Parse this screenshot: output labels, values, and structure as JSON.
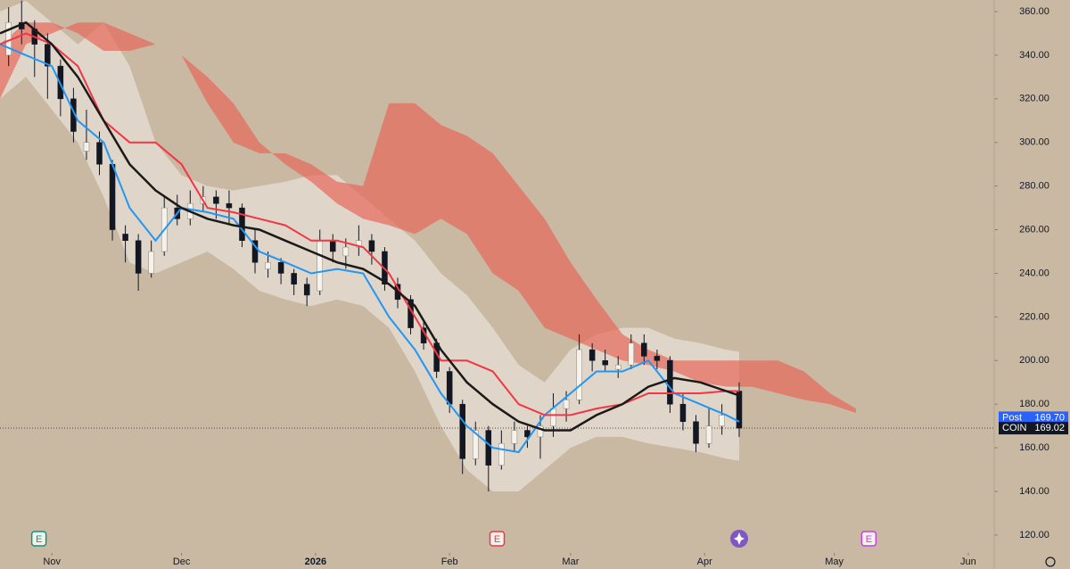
{
  "chart_data": {
    "type": "candlestick",
    "symbol": "COIN",
    "xlim": [
      -12,
      218
    ],
    "xticks": [
      {
        "value": 0,
        "label": "Nov"
      },
      {
        "value": 30,
        "label": "Dec"
      },
      {
        "value": 61,
        "label": "2026"
      },
      {
        "value": 92,
        "label": "Feb"
      },
      {
        "value": 120,
        "label": "Mar"
      },
      {
        "value": 151,
        "label": "Apr"
      },
      {
        "value": 181,
        "label": "May"
      },
      {
        "value": 212,
        "label": "Jun"
      }
    ],
    "ylim": [
      111.8,
      365.3
    ],
    "yticks": [
      {
        "value": 120,
        "label": "120.00"
      },
      {
        "value": 140,
        "label": "140.00"
      },
      {
        "value": 160,
        "label": "160.00"
      },
      {
        "value": 180,
        "label": "180.00"
      },
      {
        "value": 200,
        "label": "200.00"
      },
      {
        "value": 220,
        "label": "220.00"
      },
      {
        "value": 240,
        "label": "240.00"
      },
      {
        "value": 260,
        "label": "260.00"
      },
      {
        "value": 280,
        "label": "280.00"
      },
      {
        "value": 300,
        "label": "300.00"
      },
      {
        "value": 320,
        "label": "320.00"
      },
      {
        "value": 340,
        "label": "340.00"
      },
      {
        "value": 360,
        "label": "360.00"
      }
    ],
    "candles": [
      [
        -10,
        340,
        362,
        335,
        355
      ],
      [
        -7,
        355,
        365,
        345,
        352
      ],
      [
        -4,
        352,
        356,
        330,
        345
      ],
      [
        -1,
        345,
        350,
        320,
        335
      ],
      [
        2,
        335,
        338,
        312,
        320
      ],
      [
        5,
        320,
        325,
        300,
        305
      ],
      [
        8,
        296,
        315,
        292,
        300
      ],
      [
        11,
        300,
        305,
        285,
        290
      ],
      [
        14,
        290,
        292,
        255,
        260
      ],
      [
        17,
        258,
        262,
        245,
        255
      ],
      [
        20,
        255,
        258,
        232,
        240
      ],
      [
        23,
        240,
        255,
        238,
        250
      ],
      [
        26,
        250,
        275,
        248,
        270
      ],
      [
        29,
        270,
        276,
        262,
        265
      ],
      [
        32,
        265,
        278,
        262,
        272
      ],
      [
        35,
        272,
        280,
        268,
        275
      ],
      [
        38,
        275,
        278,
        265,
        272
      ],
      [
        41,
        272,
        278,
        262,
        270
      ],
      [
        44,
        270,
        272,
        252,
        255
      ],
      [
        47,
        255,
        260,
        240,
        245
      ],
      [
        50,
        242,
        250,
        238,
        245
      ],
      [
        53,
        245,
        247,
        235,
        240
      ],
      [
        56,
        240,
        242,
        230,
        235
      ],
      [
        59,
        235,
        238,
        225,
        230
      ],
      [
        62,
        232,
        260,
        230,
        255
      ],
      [
        65,
        255,
        258,
        245,
        250
      ],
      [
        68,
        248,
        256,
        242,
        252
      ],
      [
        71,
        252,
        262,
        248,
        255
      ],
      [
        74,
        255,
        258,
        244,
        250
      ],
      [
        77,
        250,
        252,
        232,
        235
      ],
      [
        80,
        235,
        238,
        224,
        228
      ],
      [
        83,
        228,
        230,
        212,
        215
      ],
      [
        86,
        215,
        218,
        205,
        208
      ],
      [
        89,
        208,
        210,
        192,
        195
      ],
      [
        92,
        195,
        197,
        176,
        180
      ],
      [
        95,
        180,
        182,
        148,
        155
      ],
      [
        98,
        155,
        172,
        152,
        168
      ],
      [
        101,
        168,
        170,
        140,
        152
      ],
      [
        104,
        152,
        168,
        150,
        162
      ],
      [
        107,
        162,
        172,
        158,
        168
      ],
      [
        110,
        168,
        170,
        160,
        165
      ],
      [
        113,
        165,
        175,
        155,
        170
      ],
      [
        116,
        170,
        185,
        165,
        178
      ],
      [
        119,
        178,
        186,
        172,
        182
      ],
      [
        122,
        182,
        212,
        180,
        205
      ],
      [
        125,
        205,
        208,
        195,
        200
      ],
      [
        128,
        200,
        205,
        195,
        198
      ],
      [
        131,
        196,
        202,
        192,
        198
      ],
      [
        134,
        198,
        212,
        196,
        208
      ],
      [
        137,
        208,
        212,
        198,
        202
      ],
      [
        140,
        202,
        205,
        196,
        200
      ],
      [
        143,
        200,
        202,
        176,
        180
      ],
      [
        146,
        180,
        185,
        168,
        172
      ],
      [
        149,
        172,
        175,
        158,
        162
      ],
      [
        152,
        162,
        178,
        160,
        170
      ],
      [
        155,
        170,
        180,
        166,
        175
      ],
      [
        159,
        186,
        190,
        165,
        169.02
      ]
    ],
    "up_color": "#f5f2ec",
    "down_color": "#131722",
    "line_x": [
      -12,
      -6,
      0,
      6,
      12,
      18,
      24,
      30,
      36,
      42,
      48,
      54,
      60,
      66,
      72,
      78,
      84,
      90,
      96,
      102,
      108,
      114,
      120,
      126,
      132,
      138,
      144,
      150,
      156,
      159
    ],
    "band": {
      "color": "#e6dfd4",
      "upper": [
        360,
        365,
        355,
        345,
        355,
        335,
        300,
        285,
        280,
        278,
        280,
        282,
        285,
        285,
        275,
        265,
        255,
        240,
        230,
        215,
        198,
        190,
        205,
        212,
        215,
        215,
        210,
        208,
        205,
        204
      ],
      "lower": [
        320,
        330,
        315,
        300,
        275,
        245,
        240,
        245,
        250,
        242,
        232,
        228,
        225,
        228,
        225,
        215,
        195,
        170,
        150,
        140,
        140,
        150,
        160,
        165,
        165,
        162,
        160,
        158,
        155,
        154
      ]
    },
    "lines": [
      {
        "color": "#2196f3",
        "values": [
          345,
          340,
          335,
          310,
          300,
          270,
          255,
          270,
          268,
          265,
          250,
          245,
          240,
          242,
          240,
          220,
          205,
          185,
          170,
          160,
          158,
          175,
          185,
          195,
          195,
          200,
          185,
          180,
          175,
          172
        ]
      },
      {
        "color": "#f23645",
        "values": [
          345,
          350,
          345,
          335,
          310,
          300,
          300,
          290,
          270,
          268,
          265,
          262,
          255,
          255,
          252,
          240,
          220,
          200,
          200,
          195,
          180,
          175,
          175,
          178,
          180,
          185,
          185,
          185,
          186,
          186
        ]
      },
      {
        "color": "#1a1a1a",
        "values": [
          350,
          355,
          345,
          330,
          310,
          290,
          278,
          270,
          265,
          262,
          260,
          255,
          250,
          245,
          242,
          235,
          225,
          205,
          190,
          180,
          172,
          168,
          168,
          175,
          180,
          188,
          192,
          190,
          186,
          184
        ]
      }
    ],
    "cloud": {
      "color": "#e5685a",
      "x": [
        -12,
        -6,
        0,
        6,
        12,
        18,
        24,
        30,
        36,
        42,
        48,
        54,
        60,
        66,
        72,
        78,
        84,
        90,
        96,
        102,
        108,
        114,
        120,
        126,
        132,
        138,
        144,
        150,
        156,
        162,
        168,
        174,
        180,
        186
      ],
      "span_a": [
        320,
        345,
        350,
        355,
        355,
        350,
        345,
        340,
        330,
        318,
        300,
        290,
        282,
        272,
        265,
        262,
        258,
        265,
        258,
        240,
        232,
        215,
        210,
        205,
        200,
        198,
        195,
        190,
        188,
        188,
        185,
        182,
        180,
        176
      ],
      "span_b": [
        345,
        355,
        355,
        350,
        342,
        342,
        345,
        340,
        318,
        300,
        295,
        295,
        290,
        282,
        280,
        318,
        318,
        308,
        303,
        295,
        280,
        265,
        245,
        228,
        212,
        205,
        200,
        200,
        200,
        200,
        200,
        195,
        185,
        178
      ]
    },
    "price_tags": [
      {
        "name": "Post",
        "value": 169.7,
        "value_label": "169.70",
        "color": "#2962ff"
      },
      {
        "name": "COIN",
        "value": 169.02,
        "value_label": "169.02",
        "color": "#131722"
      }
    ],
    "events": [
      {
        "x": -3,
        "label": "E",
        "color": "#089981"
      },
      {
        "x": 103,
        "label": "E",
        "color": "#f23645"
      },
      {
        "x": 189,
        "label": "E",
        "color": "#c040e0"
      }
    ]
  }
}
